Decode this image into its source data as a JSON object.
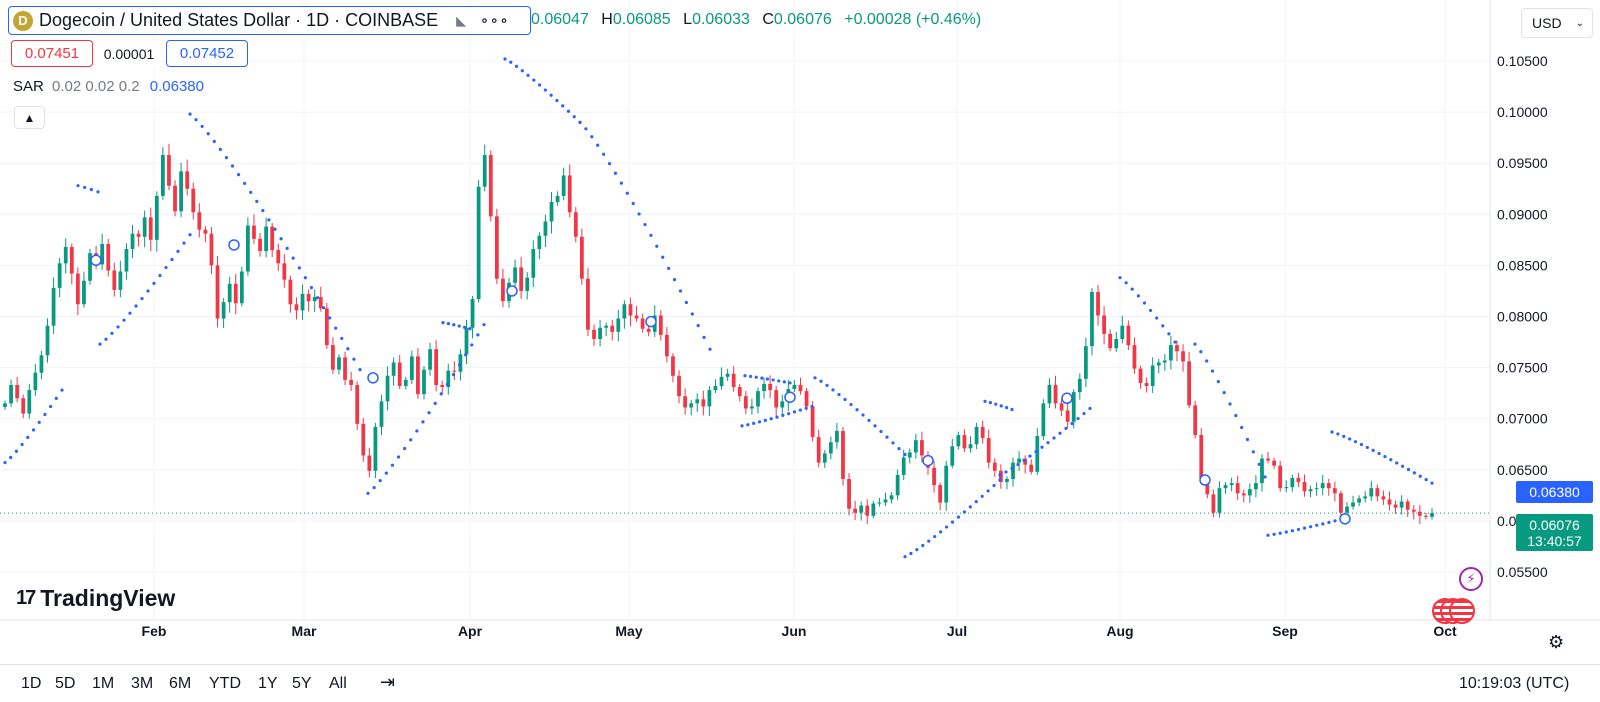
{
  "header": {
    "coin_icon": "D",
    "symbol_title": "Dogecoin / United States Dollar · 1D · COINBASE",
    "flag_icon": "flag-icon",
    "more_icon": "more-icon",
    "ohlc": {
      "o_label": "O",
      "o": "0.06047",
      "h_label": "H",
      "h": "0.06085",
      "l_label": "L",
      "l": "0.06033",
      "c_label": "C",
      "c": "0.06076",
      "change": "+0.00028 (+0.46%)"
    },
    "sell_price": "0.07451",
    "spread": "0.00001",
    "buy_price": "0.07452",
    "indicator": {
      "name": "SAR",
      "params": "0.02 0.02 0.2",
      "value": "0.06380"
    },
    "currency": "USD"
  },
  "axis_tags": {
    "sar": "0.06380",
    "last_price": "0.06076",
    "countdown": "13:40:57"
  },
  "logo": {
    "mark": "17",
    "word": "TradingView"
  },
  "bottom_bar": {
    "ranges": [
      "1D",
      "5D",
      "1M",
      "3M",
      "6M",
      "YTD",
      "1Y",
      "5Y",
      "All"
    ],
    "clock": "10:19:03 (UTC)"
  },
  "colors": {
    "up": "#089981",
    "down": "#f23645",
    "sar": "#2962ff",
    "grid": "#f0f3fa"
  },
  "chart_data": {
    "type": "candlestick",
    "y_ticks": [
      "0.10500",
      "0.10000",
      "0.09500",
      "0.09000",
      "0.08500",
      "0.08000",
      "0.07500",
      "0.07000",
      "0.06500",
      "0.06000",
      "0.05500"
    ],
    "x_ticks": [
      "Feb",
      "Mar",
      "Apr",
      "May",
      "Jun",
      "Jul",
      "Aug",
      "Sep",
      "Oct"
    ],
    "ylim": [
      0.052,
      0.106
    ],
    "grid": true,
    "last_price": 0.06076,
    "sar_value": 0.0638,
    "sar_params": [
      0.02,
      0.02,
      0.2
    ],
    "close_series": [
      [
        0.0715,
        0.0733,
        0.072,
        0.0705,
        0.0728,
        0.0745,
        0.0762,
        0.0791,
        0.0828,
        0.0852,
        0.0868,
        0.0842,
        0.0812,
        0.0835,
        0.0862,
        0.0851,
        0.0871,
        0.0845,
        0.0826,
        0.0844,
        0.0866,
        0.0881,
        0.0878,
        0.0897,
        0.0875,
        0.0918,
        0.0958,
        0.0928,
        0.0903,
        0.0942,
        0.0925,
        0.0902,
        0.0885,
        0.0881,
        0.085,
        0.0798,
        0.0814,
        0.0832,
        0.0813,
        0.0844,
        0.0889,
        0.0876,
        0.0864,
        0.0888,
        0.0865,
        0.0852,
        0.0836,
        0.0812,
        0.0806,
        0.0822,
        0.0815,
        0.0819,
        0.0808,
        0.0772,
        0.0748,
        0.076,
        0.0738,
        0.0733,
        0.0695,
        0.0664,
        0.0649,
        0.0692,
        0.0717,
        0.0742,
        0.0755,
        0.0732,
        0.0738,
        0.0761,
        0.0724,
        0.0748,
        0.0768,
        0.0733,
        0.0731,
        0.0747,
        0.0746,
        0.0763,
        0.0789,
        0.0817,
        0.0927,
        0.0958,
        0.0898,
        0.0837,
        0.0815,
        0.0833,
        0.0848,
        0.0825,
        0.0838,
        0.0866,
        0.0879,
        0.0893,
        0.0912,
        0.0918,
        0.0938,
        0.0902,
        0.0878,
        0.0837,
        0.0787,
        0.0778,
        0.0789,
        0.0791,
        0.0785,
        0.0798,
        0.0812,
        0.0801,
        0.0798,
        0.0788,
        0.0785,
        0.0801,
        0.0782,
        0.0761,
        0.0742,
        0.0722,
        0.0711,
        0.0715,
        0.0719,
        0.0712,
        0.0728,
        0.0732,
        0.0741,
        0.0744,
        0.0731,
        0.0722,
        0.071,
        0.0712,
        0.0727,
        0.0734,
        0.0728,
        0.0711,
        0.0717,
        0.0729,
        0.0733,
        0.0727,
        0.0712,
        0.0682,
        0.0657,
        0.0666,
        0.0677,
        0.0688,
        0.0641,
        0.0612,
        0.0608,
        0.0615,
        0.0605,
        0.0617,
        0.0618,
        0.0621,
        0.0625,
        0.0645,
        0.0662,
        0.0667,
        0.0679,
        0.0664,
        0.0652,
        0.0635,
        0.0618,
        0.0654,
        0.0673,
        0.0684,
        0.0671,
        0.0675,
        0.0692,
        0.0681,
        0.0657,
        0.0649,
        0.0638,
        0.0641,
        0.0657,
        0.0661,
        0.0655,
        0.0648,
        0.0683,
        0.0715,
        0.0733,
        0.0715,
        0.0708,
        0.0697,
        0.0726,
        0.0739,
        0.0771,
        0.0824,
        0.0801,
        0.0783,
        0.0769,
        0.0778,
        0.0791,
        0.0772,
        0.0749,
        0.0735,
        0.0732,
        0.0752,
        0.0755,
        0.0757,
        0.0772,
        0.0766,
        0.0756,
        0.0713,
        0.0684,
        0.0642,
        0.0626,
        0.0608,
        0.0632,
        0.0635,
        0.0637,
        0.0627,
        0.0625,
        0.0631,
        0.0637,
        0.0661,
        0.0659,
        0.0654,
        0.0632,
        0.0633,
        0.0642,
        0.0638,
        0.0629,
        0.0631,
        0.0632,
        0.0637,
        0.0632,
        0.0627,
        0.0608,
        0.0614,
        0.0618,
        0.0622,
        0.0624,
        0.0632,
        0.0624,
        0.0621,
        0.0616,
        0.0613,
        0.0619,
        0.0611,
        0.0609,
        0.0605,
        0.0604,
        0.06076
      ]
    ],
    "sar_points_approx": [
      {
        "segment": 1,
        "direction": "below",
        "from_x": "early Jan",
        "from": 0.0655,
        "to_x": "late Jan",
        "to": 0.0738
      },
      {
        "segment": 2,
        "direction": "above",
        "from_x": "late Jan",
        "from": 0.0925,
        "to_x": "early Feb",
        "to": 0.0921
      },
      {
        "segment": 3,
        "direction": "below",
        "from_x": "early Feb",
        "from": 0.0772,
        "to_x": "mid Feb",
        "to": 0.0878
      },
      {
        "segment": 4,
        "direction": "above",
        "from_x": "mid Feb",
        "from": 0.0998,
        "to_x": "early Mar",
        "to": 0.0745
      },
      {
        "segment": 5,
        "direction": "below",
        "from_x": "early Mar",
        "from": 0.0628,
        "to_x": "late Mar",
        "to": 0.0792
      },
      {
        "segment": 6,
        "direction": "above",
        "from_x": "early Apr",
        "from": 0.1052,
        "to_x": "early May",
        "to": 0.0792
      },
      {
        "segment": 7,
        "direction": "below",
        "from_x": "mid May",
        "from": 0.0695,
        "to_x": "late May",
        "to": 0.0728
      },
      {
        "segment": 8,
        "direction": "above",
        "from_x": "late May",
        "from": 0.0738,
        "to_x": "late Jun",
        "to": 0.0665
      },
      {
        "segment": 9,
        "direction": "below",
        "from_x": "late Jun",
        "from": 0.0565,
        "to_x": "mid Jul",
        "to": 0.0718
      },
      {
        "segment": 10,
        "direction": "above",
        "from_x": "early Aug",
        "from": 0.0835,
        "to_x": "late Aug",
        "to": 0.0641
      },
      {
        "segment": 11,
        "direction": "below",
        "from_x": "late Aug",
        "from": 0.0585,
        "to_x": "mid Sep",
        "to": 0.0601
      },
      {
        "segment": 12,
        "direction": "above",
        "from_x": "mid Sep",
        "from": 0.0688,
        "to_x": "late Sep",
        "to": 0.0638
      }
    ]
  }
}
